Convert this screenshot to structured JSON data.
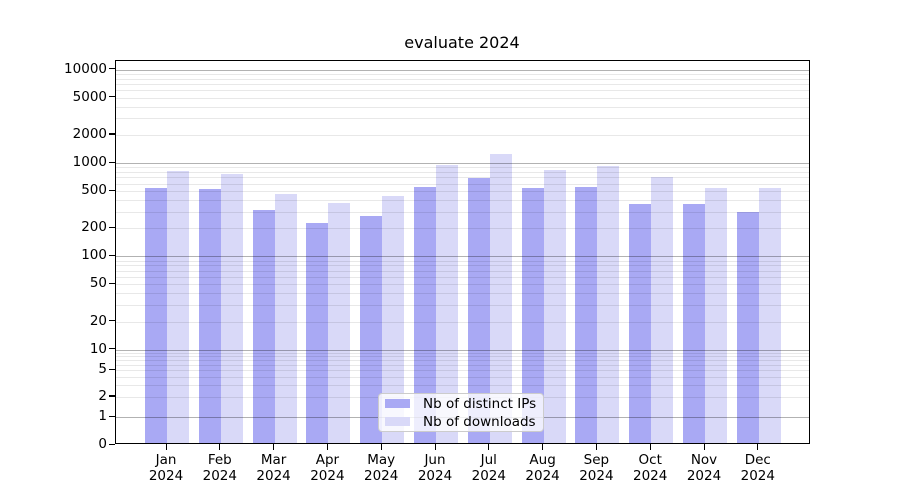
{
  "chart_data": {
    "type": "bar",
    "title": "evaluate 2024",
    "categories": [
      "Jan 2024",
      "Feb 2024",
      "Mar 2024",
      "Apr 2024",
      "May 2024",
      "Jun 2024",
      "Jul 2024",
      "Aug 2024",
      "Sep 2024",
      "Oct 2024",
      "Nov 2024",
      "Dec 2024"
    ],
    "series": [
      {
        "name": "Nb of distinct IPs",
        "color": "#a9a9f4",
        "values": [
          510,
          500,
          300,
          215,
          258,
          533,
          650,
          513,
          525,
          345,
          343,
          286
        ]
      },
      {
        "name": "Nb of downloads",
        "color": "#d9d9f8",
        "values": [
          780,
          720,
          440,
          355,
          425,
          905,
          1200,
          795,
          875,
          675,
          515,
          515
        ]
      }
    ],
    "xlabel": "",
    "ylabel": "",
    "yscale": "symlog",
    "ylim": [
      0,
      12500
    ],
    "yticks": [
      0,
      1,
      2,
      5,
      10,
      20,
      50,
      100,
      200,
      500,
      1000,
      2000,
      5000,
      10000
    ],
    "grid": true,
    "gridline_major_values": [
      1,
      10,
      100,
      1000,
      10000
    ],
    "legend_position": "lower center"
  },
  "colors": {
    "distinct_ips": "#a9a9f4",
    "downloads": "#d9d9f8",
    "axis": "#000000",
    "major_grid": "#b3b3b3",
    "minor_grid": "#e8e8e8",
    "legend_border": "#cccccc"
  }
}
